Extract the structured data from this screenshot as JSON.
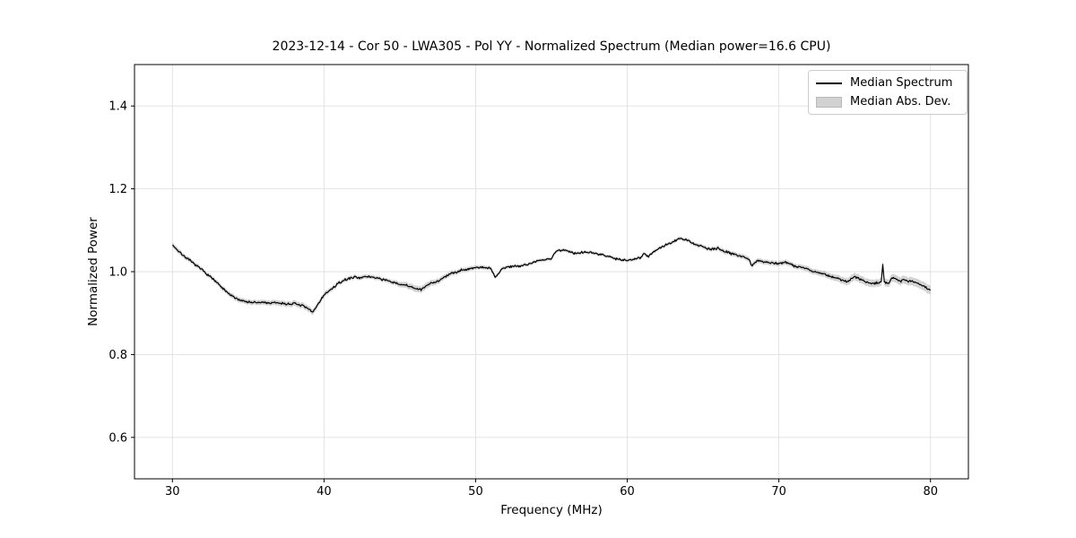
{
  "title": "2023-12-14 - Cor 50 - LWA305 - Pol YY - Normalized Spectrum (Median power=16.6 CPU)",
  "legend": {
    "items": [
      {
        "label": "Median Spectrum",
        "swatch": "black-line"
      },
      {
        "label": "Median Abs. Dev.",
        "swatch": "gray-patch"
      }
    ]
  },
  "colors": {
    "line": "#000000",
    "band": "#9e9e9e",
    "grid": "#e0e0e0",
    "spine": "#000000",
    "background": "#ffffff"
  },
  "chart_data": {
    "type": "line",
    "title": "2023-12-14 - Cor 50 - LWA305 - Pol YY - Normalized Spectrum (Median power=16.6 CPU)",
    "xlabel": "Frequency (MHz)",
    "ylabel": "Normalized Power",
    "xlim": [
      27.5,
      82.5
    ],
    "ylim": [
      0.5,
      1.5
    ],
    "xticks": [
      30,
      40,
      50,
      60,
      70,
      80
    ],
    "xtick_labels": [
      "30",
      "40",
      "50",
      "60",
      "70",
      "80"
    ],
    "yticks": [
      0.6,
      0.8,
      1.0,
      1.2,
      1.4
    ],
    "ytick_labels": [
      "0.6",
      "0.8",
      "1.0",
      "1.2",
      "1.4"
    ],
    "grid": true,
    "legend_position": "upper right",
    "series": [
      {
        "name": "Median Spectrum",
        "color": "#000000",
        "x": [
          30,
          30.5,
          31,
          31.5,
          32,
          32.5,
          33,
          33.5,
          34,
          34.5,
          35,
          35.5,
          36,
          36.5,
          37,
          37.5,
          38,
          38.5,
          39,
          39.25,
          39.5,
          40,
          40.5,
          41,
          41.5,
          42,
          42.5,
          43,
          43.5,
          44,
          44.5,
          45,
          45.5,
          46,
          46.4,
          47,
          47.5,
          48,
          48.5,
          49,
          49.5,
          50,
          50.5,
          51,
          51.3,
          51.7,
          52,
          52.5,
          53,
          53.5,
          54,
          54.5,
          55,
          55.3,
          56,
          56.5,
          57,
          57.5,
          58,
          58.5,
          59,
          59.5,
          60,
          60.5,
          60.9,
          61.1,
          61.4,
          62,
          62.5,
          63,
          63.5,
          64,
          64.5,
          65,
          65.5,
          66,
          66.5,
          67,
          67.5,
          68,
          68.2,
          68.6,
          69,
          69.5,
          70,
          70.5,
          71,
          71.5,
          72,
          72.5,
          73,
          73.5,
          74,
          74.5,
          75,
          75.5,
          76,
          76.5,
          76.75,
          76.85,
          76.95,
          77.2,
          77.5,
          78,
          78.3,
          79,
          79.5,
          80
        ],
        "y": [
          1.065,
          1.046,
          1.031,
          1.017,
          1.003,
          0.988,
          0.971,
          0.953,
          0.939,
          0.931,
          0.927,
          0.925,
          0.926,
          0.924,
          0.925,
          0.922,
          0.923,
          0.919,
          0.909,
          0.902,
          0.916,
          0.944,
          0.958,
          0.973,
          0.982,
          0.987,
          0.986,
          0.988,
          0.985,
          0.98,
          0.974,
          0.97,
          0.966,
          0.96,
          0.956,
          0.972,
          0.977,
          0.988,
          0.997,
          1.003,
          1.007,
          1.01,
          1.011,
          1.008,
          0.985,
          1.006,
          1.011,
          1.013,
          1.015,
          1.018,
          1.026,
          1.028,
          1.032,
          1.05,
          1.052,
          1.044,
          1.047,
          1.048,
          1.042,
          1.04,
          1.034,
          1.03,
          1.027,
          1.031,
          1.035,
          1.045,
          1.037,
          1.055,
          1.063,
          1.072,
          1.08,
          1.075,
          1.066,
          1.06,
          1.053,
          1.056,
          1.048,
          1.043,
          1.038,
          1.032,
          1.014,
          1.028,
          1.024,
          1.021,
          1.02,
          1.023,
          1.014,
          1.011,
          1.005,
          0.998,
          0.994,
          0.988,
          0.982,
          0.975,
          0.988,
          0.98,
          0.971,
          0.973,
          0.975,
          1.018,
          0.974,
          0.972,
          0.986,
          0.978,
          0.981,
          0.974,
          0.967,
          0.953
        ]
      },
      {
        "name": "Median Abs. Dev.",
        "color": "#9e9e9e",
        "band_x": [
          30,
          32,
          34,
          36,
          39,
          41,
          44,
          46,
          48,
          50,
          53,
          56,
          59,
          62,
          65,
          68,
          71,
          73,
          75,
          77,
          79,
          80
        ],
        "band_halfwidth": [
          0.006,
          0.005,
          0.006,
          0.006,
          0.007,
          0.005,
          0.005,
          0.008,
          0.006,
          0.005,
          0.004,
          0.004,
          0.004,
          0.004,
          0.005,
          0.006,
          0.006,
          0.007,
          0.009,
          0.009,
          0.01,
          0.011
        ]
      }
    ],
    "noise_amplitude": 0.004,
    "noise_seed": 7
  }
}
